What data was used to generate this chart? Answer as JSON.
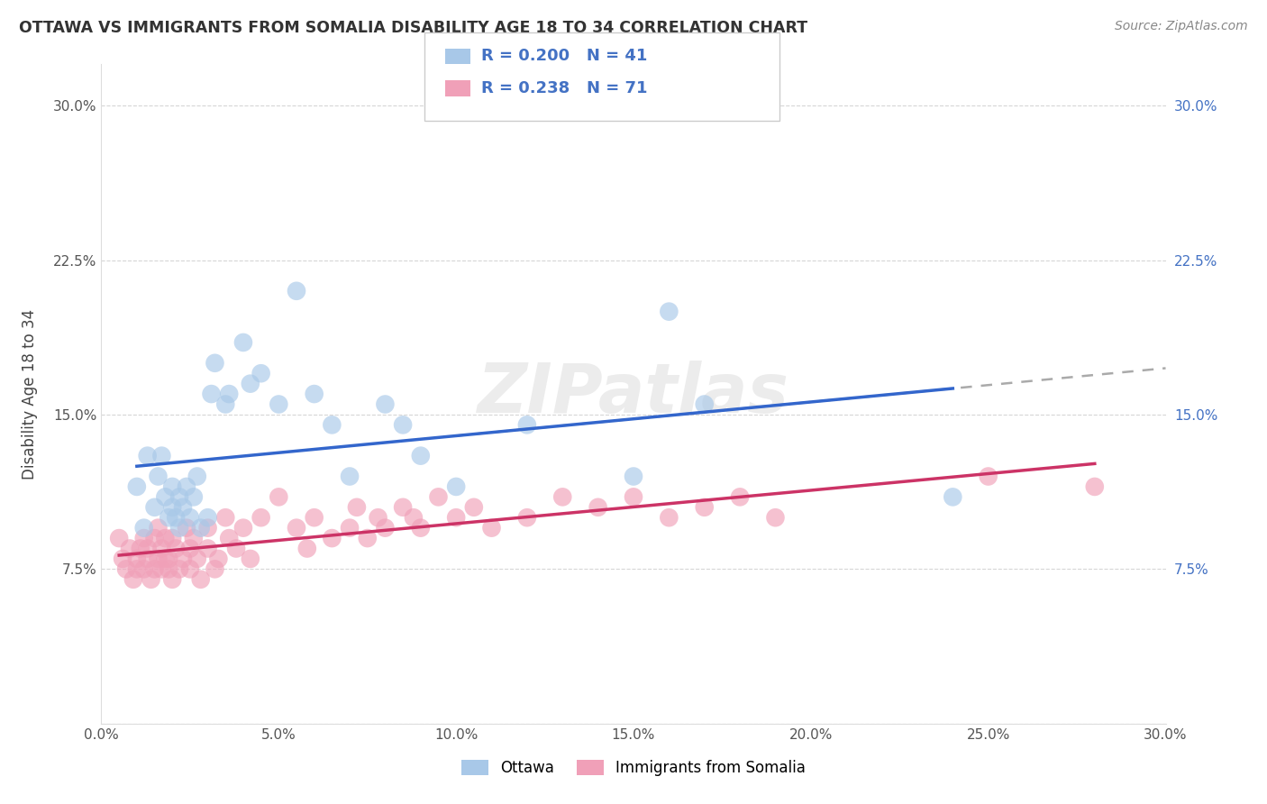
{
  "title": "OTTAWA VS IMMIGRANTS FROM SOMALIA DISABILITY AGE 18 TO 34 CORRELATION CHART",
  "source": "Source: ZipAtlas.com",
  "ylabel": "Disability Age 18 to 34",
  "xlim": [
    0.0,
    0.3
  ],
  "ylim": [
    0.0,
    0.32
  ],
  "xticks": [
    0.0,
    0.05,
    0.1,
    0.15,
    0.2,
    0.25,
    0.3
  ],
  "xticklabels": [
    "0.0%",
    "5.0%",
    "10.0%",
    "15.0%",
    "20.0%",
    "25.0%",
    "30.0%"
  ],
  "yticks": [
    0.0,
    0.075,
    0.15,
    0.225,
    0.3
  ],
  "yticklabels": [
    "",
    "7.5%",
    "15.0%",
    "22.5%",
    "30.0%"
  ],
  "legend_labels": [
    "Ottawa",
    "Immigrants from Somalia"
  ],
  "R_ottawa": 0.2,
  "N_ottawa": 41,
  "R_somalia": 0.238,
  "N_somalia": 71,
  "color_ottawa": "#a8c8e8",
  "color_somalia": "#f0a0b8",
  "line_color_ottawa": "#3366cc",
  "line_color_somalia": "#cc3366",
  "watermark": "ZIPatlas",
  "background_color": "#ffffff",
  "grid_color": "#cccccc",
  "legend_R_color": "#4472c4",
  "ottawa_x": [
    0.01,
    0.012,
    0.013,
    0.015,
    0.016,
    0.017,
    0.018,
    0.019,
    0.02,
    0.02,
    0.021,
    0.022,
    0.022,
    0.023,
    0.024,
    0.025,
    0.026,
    0.027,
    0.028,
    0.03,
    0.031,
    0.032,
    0.035,
    0.036,
    0.04,
    0.042,
    0.045,
    0.05,
    0.055,
    0.06,
    0.065,
    0.07,
    0.08,
    0.085,
    0.09,
    0.1,
    0.12,
    0.15,
    0.16,
    0.17,
    0.24
  ],
  "ottawa_y": [
    0.115,
    0.095,
    0.13,
    0.105,
    0.12,
    0.13,
    0.11,
    0.1,
    0.105,
    0.115,
    0.1,
    0.095,
    0.11,
    0.105,
    0.115,
    0.1,
    0.11,
    0.12,
    0.095,
    0.1,
    0.16,
    0.175,
    0.155,
    0.16,
    0.185,
    0.165,
    0.17,
    0.155,
    0.21,
    0.16,
    0.145,
    0.12,
    0.155,
    0.145,
    0.13,
    0.115,
    0.145,
    0.12,
    0.2,
    0.155,
    0.11
  ],
  "somalia_x": [
    0.005,
    0.006,
    0.007,
    0.008,
    0.009,
    0.01,
    0.01,
    0.011,
    0.012,
    0.012,
    0.013,
    0.013,
    0.014,
    0.015,
    0.015,
    0.016,
    0.016,
    0.017,
    0.017,
    0.018,
    0.018,
    0.019,
    0.019,
    0.02,
    0.02,
    0.021,
    0.022,
    0.023,
    0.024,
    0.025,
    0.025,
    0.026,
    0.027,
    0.028,
    0.03,
    0.03,
    0.032,
    0.033,
    0.035,
    0.036,
    0.038,
    0.04,
    0.042,
    0.045,
    0.05,
    0.055,
    0.058,
    0.06,
    0.065,
    0.07,
    0.072,
    0.075,
    0.078,
    0.08,
    0.085,
    0.088,
    0.09,
    0.095,
    0.1,
    0.105,
    0.11,
    0.12,
    0.13,
    0.14,
    0.15,
    0.16,
    0.17,
    0.18,
    0.19,
    0.25,
    0.28
  ],
  "somalia_y": [
    0.09,
    0.08,
    0.075,
    0.085,
    0.07,
    0.08,
    0.075,
    0.085,
    0.09,
    0.075,
    0.08,
    0.085,
    0.07,
    0.075,
    0.09,
    0.08,
    0.095,
    0.075,
    0.085,
    0.08,
    0.09,
    0.075,
    0.08,
    0.09,
    0.07,
    0.085,
    0.075,
    0.08,
    0.095,
    0.085,
    0.075,
    0.09,
    0.08,
    0.07,
    0.095,
    0.085,
    0.075,
    0.08,
    0.1,
    0.09,
    0.085,
    0.095,
    0.08,
    0.1,
    0.11,
    0.095,
    0.085,
    0.1,
    0.09,
    0.095,
    0.105,
    0.09,
    0.1,
    0.095,
    0.105,
    0.1,
    0.095,
    0.11,
    0.1,
    0.105,
    0.095,
    0.1,
    0.11,
    0.105,
    0.11,
    0.1,
    0.105,
    0.11,
    0.1,
    0.12,
    0.115
  ]
}
